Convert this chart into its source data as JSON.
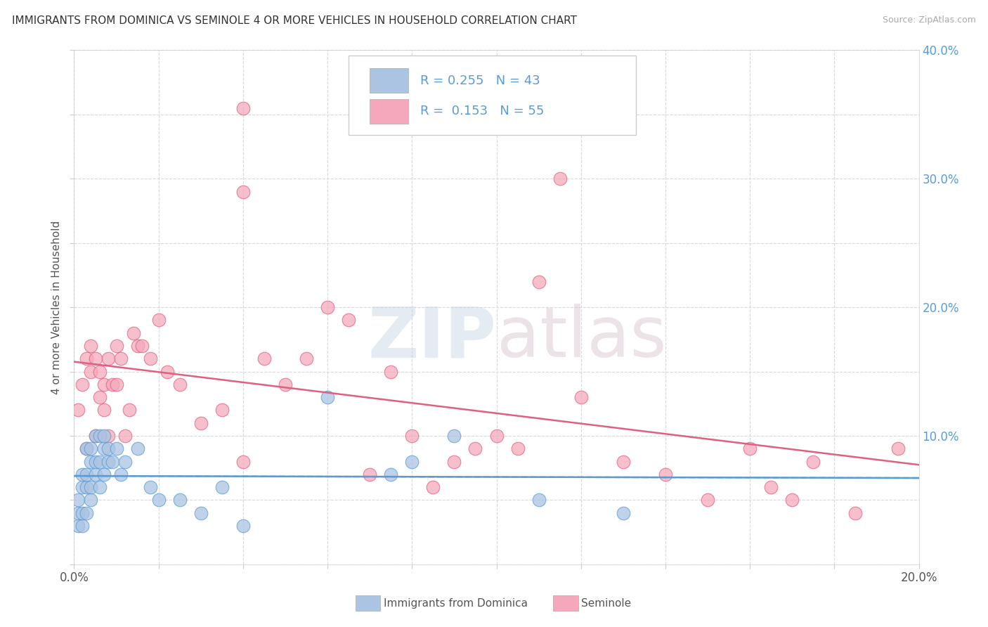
{
  "title": "IMMIGRANTS FROM DOMINICA VS SEMINOLE 4 OR MORE VEHICLES IN HOUSEHOLD CORRELATION CHART",
  "source": "Source: ZipAtlas.com",
  "ylabel": "4 or more Vehicles in Household",
  "xlim": [
    0.0,
    0.2
  ],
  "ylim": [
    0.0,
    0.4
  ],
  "xticks": [
    0.0,
    0.02,
    0.04,
    0.06,
    0.08,
    0.1,
    0.12,
    0.14,
    0.16,
    0.18,
    0.2
  ],
  "yticks": [
    0.0,
    0.05,
    0.1,
    0.15,
    0.2,
    0.25,
    0.3,
    0.35,
    0.4
  ],
  "blue_R": 0.255,
  "blue_N": 43,
  "pink_R": 0.153,
  "pink_N": 55,
  "blue_color": "#aac4e2",
  "pink_color": "#f5a8bb",
  "blue_line_color": "#5b9bd5",
  "pink_line_color": "#e06080",
  "legend_text_color": "#5b9bd5",
  "legend_label_blue": "Immigrants from Dominica",
  "legend_label_pink": "Seminole",
  "blue_x": [
    0.001,
    0.001,
    0.001,
    0.002,
    0.002,
    0.002,
    0.002,
    0.003,
    0.003,
    0.003,
    0.003,
    0.004,
    0.004,
    0.004,
    0.004,
    0.005,
    0.005,
    0.005,
    0.006,
    0.006,
    0.006,
    0.007,
    0.007,
    0.007,
    0.008,
    0.008,
    0.009,
    0.01,
    0.011,
    0.012,
    0.015,
    0.018,
    0.02,
    0.025,
    0.03,
    0.035,
    0.04,
    0.06,
    0.075,
    0.08,
    0.09,
    0.11,
    0.13
  ],
  "blue_y": [
    0.03,
    0.04,
    0.05,
    0.03,
    0.04,
    0.06,
    0.07,
    0.04,
    0.06,
    0.07,
    0.09,
    0.05,
    0.06,
    0.08,
    0.09,
    0.07,
    0.08,
    0.1,
    0.06,
    0.08,
    0.1,
    0.07,
    0.09,
    0.1,
    0.08,
    0.09,
    0.08,
    0.09,
    0.07,
    0.08,
    0.09,
    0.06,
    0.05,
    0.05,
    0.04,
    0.06,
    0.03,
    0.13,
    0.07,
    0.08,
    0.1,
    0.05,
    0.04
  ],
  "pink_x": [
    0.001,
    0.002,
    0.003,
    0.003,
    0.004,
    0.004,
    0.005,
    0.005,
    0.006,
    0.006,
    0.007,
    0.007,
    0.008,
    0.008,
    0.009,
    0.01,
    0.01,
    0.011,
    0.012,
    0.013,
    0.014,
    0.015,
    0.016,
    0.018,
    0.02,
    0.022,
    0.025,
    0.03,
    0.035,
    0.04,
    0.045,
    0.05,
    0.055,
    0.06,
    0.065,
    0.07,
    0.075,
    0.08,
    0.085,
    0.09,
    0.095,
    0.1,
    0.105,
    0.11,
    0.115,
    0.12,
    0.13,
    0.14,
    0.15,
    0.16,
    0.165,
    0.17,
    0.175,
    0.185,
    0.195
  ],
  "pink_y": [
    0.12,
    0.14,
    0.09,
    0.16,
    0.15,
    0.17,
    0.1,
    0.16,
    0.13,
    0.15,
    0.14,
    0.12,
    0.1,
    0.16,
    0.14,
    0.17,
    0.14,
    0.16,
    0.1,
    0.12,
    0.18,
    0.17,
    0.17,
    0.16,
    0.19,
    0.15,
    0.14,
    0.11,
    0.12,
    0.08,
    0.16,
    0.14,
    0.16,
    0.2,
    0.19,
    0.07,
    0.15,
    0.1,
    0.06,
    0.08,
    0.09,
    0.1,
    0.09,
    0.22,
    0.3,
    0.13,
    0.08,
    0.07,
    0.05,
    0.09,
    0.06,
    0.05,
    0.08,
    0.04,
    0.09
  ],
  "pink_outlier_x": [
    0.04
  ],
  "pink_outlier_y": [
    0.355
  ],
  "pink_outlier2_x": [
    0.04
  ],
  "pink_outlier2_y": [
    0.29
  ],
  "watermark_zip": "ZIP",
  "watermark_atlas": "atlas",
  "background_color": "#ffffff",
  "grid_color": "#d8d8d8"
}
